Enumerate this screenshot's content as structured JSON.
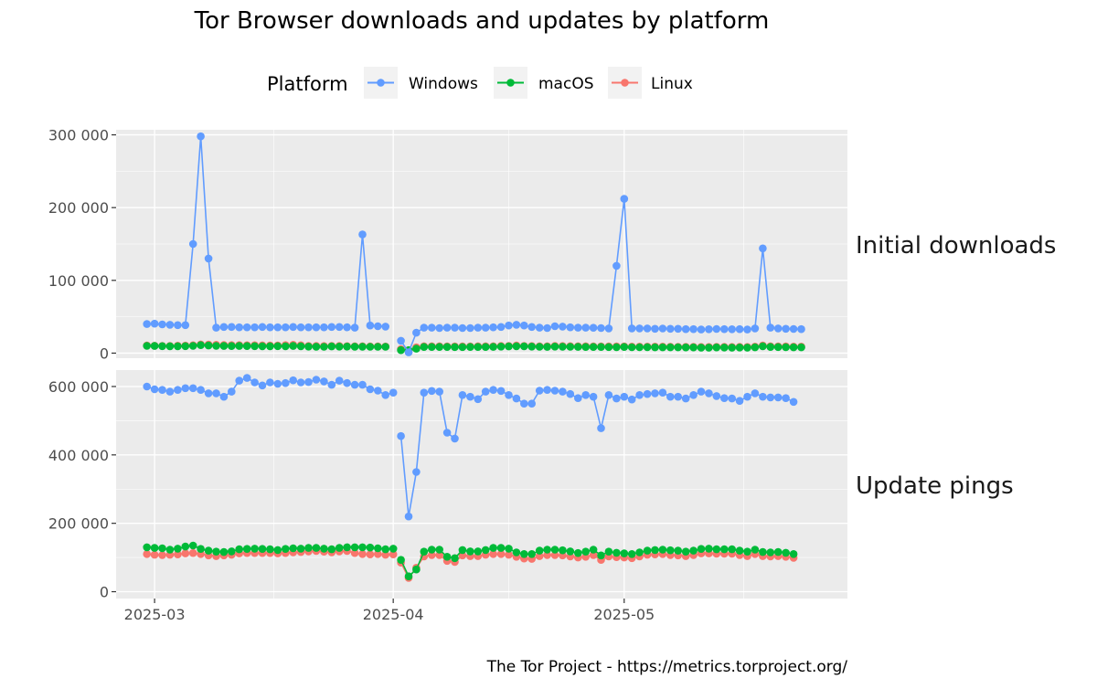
{
  "chart_data": {
    "type": "line",
    "title": "Tor Browser downloads and updates by platform",
    "caption": "The Tor Project - https://metrics.torproject.org/",
    "legend": {
      "title": "Platform",
      "position": "top",
      "entries": [
        "Windows",
        "macOS",
        "Linux"
      ]
    },
    "colors": {
      "Windows": "#619CFF",
      "macOS": "#00BA38",
      "Linux": "#F8766D"
    },
    "panel_background": "#EBEBEB",
    "grid": true,
    "x_axis": {
      "type": "date",
      "tick_labels": [
        "2025-03",
        "2025-04",
        "2025-05"
      ],
      "range": [
        "2025-02-24",
        "2025-05-30"
      ]
    },
    "facets": [
      {
        "label": "Initial downloads",
        "y_ticks": [
          0,
          100000,
          200000,
          300000
        ],
        "y_tick_labels": [
          "0",
          "100 000",
          "200 000",
          "300 000"
        ],
        "ylim": [
          -7000,
          307000
        ],
        "segments": [
          {
            "start": "2025-02-28",
            "series": [
              {
                "name": "Windows",
                "values": [
                  40000,
                  40500,
                  39500,
                  39000,
                  38500,
                  38500,
                  150000,
                  298000,
                  130000,
                  35000,
                  36000,
                  36000,
                  35500,
                  35500,
                  35500,
                  36000,
                  35500,
                  35500,
                  35500,
                  36000,
                  35500,
                  35500,
                  35500,
                  35500,
                  36000,
                  36000,
                  35500,
                  35000,
                  163000,
                  38000,
                  37000,
                  36500
                ]
              },
              {
                "name": "macOS",
                "values": [
                  10000,
                  9800,
                  9600,
                  9500,
                  9500,
                  9600,
                  10000,
                  11000,
                  10500,
                  10000,
                  9800,
                  9700,
                  9800,
                  9700,
                  9600,
                  9500,
                  9500,
                  9600,
                  9500,
                  9800,
                  9400,
                  9000,
                  8800,
                  8700,
                  9200,
                  9000,
                  8900,
                  8800,
                  8800,
                  8700,
                  8700,
                  8700
                ]
              },
              {
                "name": "Linux",
                "values": [
                  10500,
                  10200,
                  10000,
                  10000,
                  10200,
                  10300,
                  10800,
                  12000,
                  11800,
                  11500,
                  11200,
                  11000,
                  11000,
                  10800,
                  10800,
                  10700,
                  10600,
                  10500,
                  11000,
                  11500,
                  10800,
                  10000,
                  9800,
                  9700,
                  9900,
                  9800,
                  9600,
                  9500,
                  9400,
                  9300,
                  9200,
                  9100
                ]
              }
            ]
          },
          {
            "start": "2025-04-02",
            "series": [
              {
                "name": "Windows",
                "values": [
                  17000,
                  1000,
                  28000,
                  35000,
                  35000,
                  34500,
                  35000,
                  35000,
                  34500,
                  34500,
                  35000,
                  35000,
                  35500,
                  36000,
                  38000,
                  39000,
                  38000,
                  36000,
                  35000,
                  34500,
                  37000,
                  36500,
                  35500,
                  35000,
                  35000,
                  34800,
                  34500,
                  34000,
                  120000,
                  212000,
                  34000,
                  34000,
                  34000,
                  33500,
                  33800,
                  33500,
                  33500,
                  33000,
                  33000,
                  32500,
                  32800,
                  33200,
                  33000,
                  32800,
                  33000,
                  32500,
                  34000,
                  144000,
                  35000,
                  34000,
                  33500,
                  33200,
                  33000
                ]
              },
              {
                "name": "macOS",
                "values": [
                  4000,
                  4000,
                  6000,
                  8500,
                  8500,
                  8400,
                  8400,
                  8300,
                  8300,
                  8400,
                  8500,
                  8500,
                  8600,
                  9000,
                  9200,
                  9500,
                  9300,
                  8900,
                  8700,
                  8600,
                  9000,
                  8800,
                  8700,
                  8600,
                  8500,
                  8500,
                  8400,
                  8300,
                  8200,
                  8400,
                  8100,
                  8100,
                  8200,
                  8000,
                  8000,
                  8000,
                  7900,
                  7800,
                  7800,
                  7600,
                  7600,
                  7800,
                  7700,
                  7600,
                  7700,
                  7600,
                  8000,
                  9500,
                  8500,
                  8300,
                  8200,
                  8000,
                  8000
                ]
              },
              {
                "name": "Linux",
                "values": [
                  5500,
                  3500,
                  8000,
                  9500,
                  9500,
                  9400,
                  9300,
                  9300,
                  9200,
                  9300,
                  9400,
                  9500,
                  9500,
                  9800,
                  10000,
                  10500,
                  10000,
                  9700,
                  9500,
                  9400,
                  9800,
                  9700,
                  9600,
                  9500,
                  9400,
                  9300,
                  9300,
                  9200,
                  9200,
                  9300,
                  9000,
                  9000,
                  9000,
                  8900,
                  8900,
                  8800,
                  8700,
                  8700,
                  8600,
                  8500,
                  8500,
                  8600,
                  8600,
                  8500,
                  8600,
                  8500,
                  9000,
                  10500,
                  9500,
                  9300,
                  9200,
                  9000,
                  9000
                ]
              }
            ]
          }
        ]
      },
      {
        "label": "Update pings",
        "y_ticks": [
          0,
          200000,
          400000,
          600000
        ],
        "y_tick_labels": [
          "0",
          "200 000",
          "400 000",
          "600 000"
        ],
        "ylim": [
          -20000,
          648000
        ],
        "segments": [
          {
            "start": "2025-02-28",
            "series": [
              {
                "name": "Windows",
                "values": [
                  600000,
                  592000,
                  590000,
                  585000,
                  590000,
                  595000,
                  595000,
                  590000,
                  580000,
                  580000,
                  570000,
                  585000,
                  617000,
                  625000,
                  612000,
                  603000,
                  612000,
                  608000,
                  610000,
                  618000,
                  612000,
                  613000,
                  620000,
                  615000,
                  605000,
                  617000,
                  610000,
                  605000,
                  605000,
                  592000,
                  588000,
                  575000,
                  582000
                ]
              },
              {
                "name": "macOS",
                "values": [
                  130000,
                  128000,
                  127000,
                  123000,
                  126000,
                  132000,
                  135000,
                  125000,
                  120000,
                  117000,
                  116000,
                  118000,
                  124000,
                  125000,
                  126000,
                  125000,
                  124000,
                  122000,
                  125000,
                  127000,
                  126000,
                  128000,
                  128000,
                  126000,
                  124000,
                  128000,
                  130000,
                  130000,
                  130000,
                  129000,
                  127000,
                  124000,
                  126000
                ]
              },
              {
                "name": "Linux",
                "values": [
                  110000,
                  108000,
                  107000,
                  108000,
                  109000,
                  112000,
                  113000,
                  110000,
                  106000,
                  104000,
                  106000,
                  108000,
                  112000,
                  113000,
                  113000,
                  113000,
                  113000,
                  112000,
                  113000,
                  115000,
                  116000,
                  118000,
                  119000,
                  117000,
                  115000,
                  118000,
                  119000,
                  113000,
                  110000,
                  109000,
                  110000,
                  108000,
                  109000
                ]
              }
            ]
          },
          {
            "start": "2025-04-02",
            "series": [
              {
                "name": "Windows",
                "values": [
                  455000,
                  220000,
                  350000,
                  582000,
                  587000,
                  585000,
                  465000,
                  448000,
                  575000,
                  570000,
                  563000,
                  585000,
                  590000,
                  587000,
                  575000,
                  565000,
                  550000,
                  550000,
                  588000,
                  590000,
                  588000,
                  585000,
                  578000,
                  566000,
                  575000,
                  570000,
                  478000,
                  575000,
                  565000,
                  570000,
                  562000,
                  575000,
                  578000,
                  580000,
                  582000,
                  570000,
                  570000,
                  565000,
                  575000,
                  585000,
                  580000,
                  572000,
                  566000,
                  565000,
                  558000,
                  570000,
                  580000,
                  570000,
                  568000,
                  568000,
                  566000,
                  555000
                ]
              },
              {
                "name": "macOS",
                "values": [
                  93000,
                  45000,
                  65000,
                  117000,
                  123000,
                  123000,
                  102000,
                  98000,
                  122000,
                  118000,
                  118000,
                  122000,
                  128000,
                  128000,
                  126000,
                  115000,
                  110000,
                  110000,
                  120000,
                  123000,
                  123000,
                  121000,
                  118000,
                  113000,
                  117000,
                  123000,
                  106000,
                  117000,
                  114000,
                  112000,
                  110000,
                  115000,
                  120000,
                  122000,
                  123000,
                  121000,
                  120000,
                  117000,
                  120000,
                  125000,
                  126000,
                  124000,
                  124000,
                  124000,
                  120000,
                  117000,
                  123000,
                  116000,
                  115000,
                  116000,
                  114000,
                  110000
                ]
              },
              {
                "name": "Linux",
                "values": [
                  85000,
                  40000,
                  70000,
                  103000,
                  107000,
                  107000,
                  90000,
                  87000,
                  106000,
                  104000,
                  104000,
                  108000,
                  110000,
                  110000,
                  108000,
                  102000,
                  97000,
                  96000,
                  104000,
                  107000,
                  107000,
                  106000,
                  103000,
                  100000,
                  102000,
                  107000,
                  93000,
                  103000,
                  101000,
                  100000,
                  98000,
                  103000,
                  108000,
                  109000,
                  110000,
                  107000,
                  106000,
                  104000,
                  107000,
                  112000,
                  112000,
                  111000,
                  111000,
                  111000,
                  107000,
                  104000,
                  110000,
                  104000,
                  103000,
                  104000,
                  102000,
                  99000
                ]
              }
            ]
          }
        ]
      }
    ]
  }
}
